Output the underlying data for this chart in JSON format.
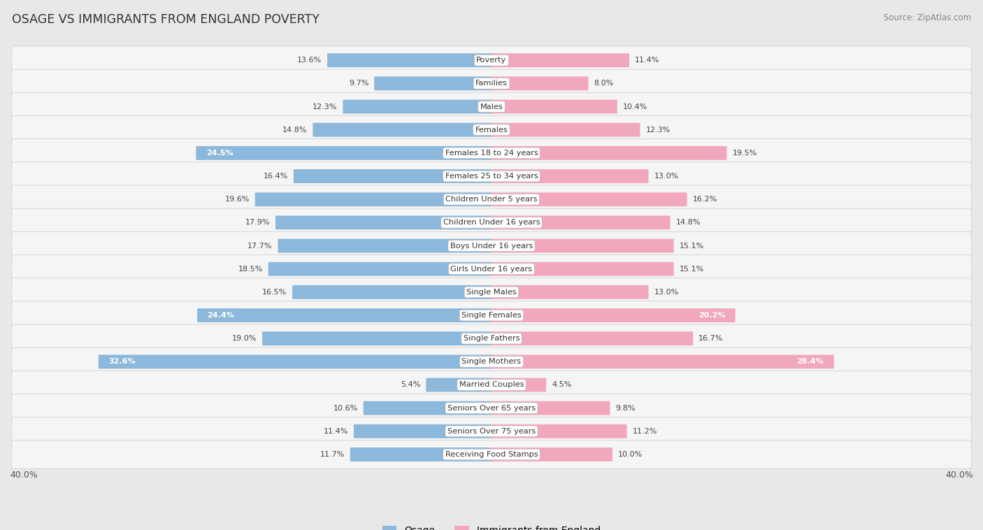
{
  "title": "OSAGE VS IMMIGRANTS FROM ENGLAND POVERTY",
  "source": "Source: ZipAtlas.com",
  "categories": [
    "Poverty",
    "Families",
    "Males",
    "Females",
    "Females 18 to 24 years",
    "Females 25 to 34 years",
    "Children Under 5 years",
    "Children Under 16 years",
    "Boys Under 16 years",
    "Girls Under 16 years",
    "Single Males",
    "Single Females",
    "Single Fathers",
    "Single Mothers",
    "Married Couples",
    "Seniors Over 65 years",
    "Seniors Over 75 years",
    "Receiving Food Stamps"
  ],
  "osage": [
    13.6,
    9.7,
    12.3,
    14.8,
    24.5,
    16.4,
    19.6,
    17.9,
    17.7,
    18.5,
    16.5,
    24.4,
    19.0,
    32.6,
    5.4,
    10.6,
    11.4,
    11.7
  ],
  "england": [
    11.4,
    8.0,
    10.4,
    12.3,
    19.5,
    13.0,
    16.2,
    14.8,
    15.1,
    15.1,
    13.0,
    20.2,
    16.7,
    28.4,
    4.5,
    9.8,
    11.2,
    10.0
  ],
  "osage_color": "#8cb8db",
  "england_color": "#f2a8bc",
  "osage_label": "Osage",
  "england_label": "Immigrants from England",
  "axis_max": 40.0,
  "background_color": "#e8e8e8",
  "row_bg_color": "#f5f5f5",
  "label_threshold": 20.0
}
